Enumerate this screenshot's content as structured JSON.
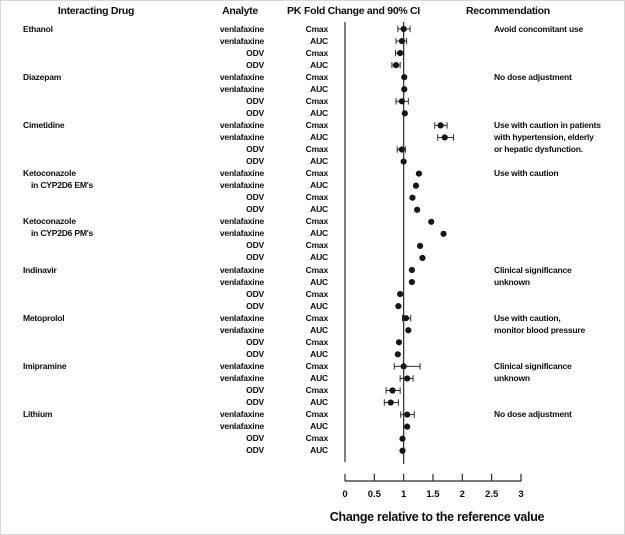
{
  "figure": {
    "columns": {
      "interacting_drug": "Interacting Drug",
      "analyte": "Analyte",
      "pk": "PK",
      "fold_change": "Fold Change and 90% CI",
      "recommendation": "Recommendation"
    }
  },
  "chart_data": {
    "type": "scatter",
    "variant": "forest-plot",
    "title": "",
    "xlabel": "Change relative to the reference value",
    "x_ticks": [
      "0",
      "0.5",
      "1",
      "1.5",
      "2",
      "2.5",
      "3"
    ],
    "xlim": [
      0,
      3
    ],
    "reference_value": 1,
    "grid": false,
    "marker_color": "#161616",
    "line_color": "#2a2a2a",
    "groups": [
      {
        "drug": [
          "Ethanol"
        ],
        "recommendation": [
          "Avoid concomitant use"
        ],
        "rows": [
          {
            "analyte": "venlafaxine",
            "pk": "Cmax",
            "value": 1.0,
            "lo": 0.9,
            "hi": 1.11
          },
          {
            "analyte": "venlafaxine",
            "pk": "AUC",
            "value": 0.97,
            "lo": 0.87,
            "hi": 1.05
          },
          {
            "analyte": "ODV",
            "pk": "Cmax",
            "value": 0.94,
            "lo": 0.86,
            "hi": 1.0
          },
          {
            "analyte": "ODV",
            "pk": "AUC",
            "value": 0.87,
            "lo": 0.8,
            "hi": 0.94
          }
        ]
      },
      {
        "drug": [
          "Diazepam"
        ],
        "recommendation": [
          "No dose adjustment"
        ],
        "rows": [
          {
            "analyte": "venlafaxine",
            "pk": "Cmax",
            "value": 1.01,
            "lo": null,
            "hi": null
          },
          {
            "analyte": "venlafaxine",
            "pk": "AUC",
            "value": 1.01,
            "lo": null,
            "hi": null
          },
          {
            "analyte": "ODV",
            "pk": "Cmax",
            "value": 0.97,
            "lo": 0.87,
            "hi": 1.08
          },
          {
            "analyte": "ODV",
            "pk": "AUC",
            "value": 1.02,
            "lo": null,
            "hi": null
          }
        ]
      },
      {
        "drug": [
          "Cimetidine"
        ],
        "recommendation": [
          "Use with caution in patients",
          "with hypertension, elderly",
          "or hepatic dysfunction."
        ],
        "rows": [
          {
            "analyte": "venlafaxine",
            "pk": "Cmax",
            "value": 1.63,
            "lo": 1.53,
            "hi": 1.74
          },
          {
            "analyte": "venlafaxine",
            "pk": "AUC",
            "value": 1.7,
            "lo": 1.58,
            "hi": 1.85
          },
          {
            "analyte": "ODV",
            "pk": "Cmax",
            "value": 0.97,
            "lo": 0.89,
            "hi": 1.03
          },
          {
            "analyte": "ODV",
            "pk": "AUC",
            "value": 1.0,
            "lo": null,
            "hi": null
          }
        ]
      },
      {
        "drug": [
          "Ketoconazole",
          "in CYP2D6 EM's"
        ],
        "recommendation": [
          "Use with caution"
        ],
        "rows": [
          {
            "analyte": "venlafaxine",
            "pk": "Cmax",
            "value": 1.26,
            "lo": null,
            "hi": null
          },
          {
            "analyte": "venlafaxine",
            "pk": "AUC",
            "value": 1.21,
            "lo": null,
            "hi": null
          },
          {
            "analyte": "ODV",
            "pk": "Cmax",
            "value": 1.15,
            "lo": null,
            "hi": null
          },
          {
            "analyte": "ODV",
            "pk": "AUC",
            "value": 1.23,
            "lo": null,
            "hi": null
          }
        ]
      },
      {
        "drug": [
          "Ketoconazole",
          "in CYP2D6 PM's"
        ],
        "recommendation": [],
        "rows": [
          {
            "analyte": "venlafaxine",
            "pk": "Cmax",
            "value": 1.47,
            "lo": null,
            "hi": null
          },
          {
            "analyte": "venlafaxine",
            "pk": "AUC",
            "value": 1.68,
            "lo": null,
            "hi": null
          },
          {
            "analyte": "ODV",
            "pk": "Cmax",
            "value": 1.28,
            "lo": null,
            "hi": null
          },
          {
            "analyte": "ODV",
            "pk": "AUC",
            "value": 1.32,
            "lo": null,
            "hi": null
          }
        ]
      },
      {
        "drug": [
          "Indinavir"
        ],
        "recommendation": [
          "Clinical significance",
          "unknown"
        ],
        "rows": [
          {
            "analyte": "venlafaxine",
            "pk": "Cmax",
            "value": 1.14,
            "lo": null,
            "hi": null
          },
          {
            "analyte": "venlafaxine",
            "pk": "AUC",
            "value": 1.14,
            "lo": null,
            "hi": null
          },
          {
            "analyte": "ODV",
            "pk": "Cmax",
            "value": 0.94,
            "lo": null,
            "hi": null
          },
          {
            "analyte": "ODV",
            "pk": "AUC",
            "value": 0.91,
            "lo": null,
            "hi": null
          }
        ]
      },
      {
        "drug": [
          "Metoprolol"
        ],
        "recommendation": [
          "Use with caution,",
          "monitor blood pressure"
        ],
        "rows": [
          {
            "analyte": "venlafaxine",
            "pk": "Cmax",
            "value": 1.04,
            "lo": 0.98,
            "hi": 1.12
          },
          {
            "analyte": "venlafaxine",
            "pk": "AUC",
            "value": 1.08,
            "lo": null,
            "hi": null
          },
          {
            "analyte": "ODV",
            "pk": "Cmax",
            "value": 0.92,
            "lo": null,
            "hi": null
          },
          {
            "analyte": "ODV",
            "pk": "AUC",
            "value": 0.9,
            "lo": null,
            "hi": null
          }
        ]
      },
      {
        "drug": [
          "Imipramine"
        ],
        "recommendation": [
          "Clinical significance",
          "unknown"
        ],
        "rows": [
          {
            "analyte": "venlafaxine",
            "pk": "Cmax",
            "value": 1.0,
            "lo": 0.84,
            "hi": 1.28
          },
          {
            "analyte": "venlafaxine",
            "pk": "AUC",
            "value": 1.06,
            "lo": 0.94,
            "hi": 1.16
          },
          {
            "analyte": "ODV",
            "pk": "Cmax",
            "value": 0.81,
            "lo": 0.7,
            "hi": 0.94
          },
          {
            "analyte": "ODV",
            "pk": "AUC",
            "value": 0.78,
            "lo": 0.67,
            "hi": 0.91
          }
        ]
      },
      {
        "drug": [
          "Lithium"
        ],
        "recommendation": [
          "No dose adjustment"
        ],
        "rows": [
          {
            "analyte": "venlafaxine",
            "pk": "Cmax",
            "value": 1.06,
            "lo": 0.95,
            "hi": 1.18
          },
          {
            "analyte": "venlafaxine",
            "pk": "AUC",
            "value": 1.06,
            "lo": null,
            "hi": null
          },
          {
            "analyte": "ODV",
            "pk": "Cmax",
            "value": 0.98,
            "lo": null,
            "hi": null
          },
          {
            "analyte": "ODV",
            "pk": "AUC",
            "value": 0.98,
            "lo": null,
            "hi": null
          }
        ]
      }
    ]
  }
}
